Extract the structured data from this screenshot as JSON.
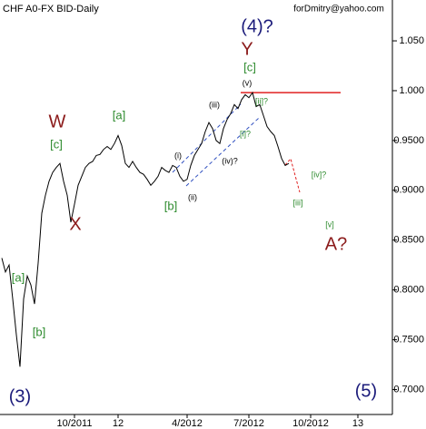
{
  "chart_data": {
    "type": "line",
    "title": "CHF A0-FX BID-Daily",
    "subtitle": "forDmitry@yahoo.com",
    "categories": [
      null,
      null,
      null,
      null,
      null,
      null,
      null,
      null,
      null,
      null,
      null,
      null,
      null,
      null,
      null,
      null,
      null,
      null,
      null,
      null,
      "10/2011",
      null,
      null,
      null,
      null,
      null,
      null,
      null,
      null,
      null,
      null,
      null,
      "12",
      null,
      null,
      null,
      null,
      null,
      null,
      null,
      null,
      null,
      null,
      null,
      null,
      null,
      null,
      null,
      null,
      null,
      null,
      "4/2012",
      null,
      null,
      null,
      null,
      null,
      null,
      null,
      null,
      null,
      null,
      null,
      null,
      null,
      null,
      null,
      null,
      "7/2012",
      null,
      null,
      null,
      null,
      null,
      null,
      null,
      null,
      null,
      null,
      null,
      null,
      null,
      null,
      null,
      null,
      "10/2012",
      null,
      null,
      null,
      null,
      null,
      null,
      null,
      null,
      null,
      null,
      null,
      null,
      "13",
      null,
      null,
      null,
      null,
      null,
      null,
      null,
      null,
      null
    ],
    "series": [
      {
        "color": "#000000",
        "values": [
          0.832,
          0.818,
          0.825,
          0.791,
          0.755,
          0.723,
          0.791,
          0.814,
          0.805,
          0.786,
          0.827,
          0.877,
          0.895,
          0.909,
          0.918,
          0.923,
          0.927,
          0.909,
          0.895,
          0.868,
          0.886,
          0.905,
          0.914,
          0.923,
          0.927,
          0.929,
          0.935,
          0.936,
          0.941,
          0.944,
          0.941,
          0.947,
          0.955,
          0.945,
          0.927,
          0.923,
          0.929,
          0.923,
          0.918,
          0.916,
          0.911,
          0.905,
          0.909,
          0.914,
          0.923,
          0.92,
          0.918,
          0.925,
          0.923,
          0.914,
          0.909,
          0.911,
          0.925,
          0.935,
          0.941,
          0.947,
          0.959,
          0.968,
          0.962,
          0.95,
          0.947,
          0.962,
          0.971,
          0.977,
          0.986,
          0.982,
          0.991,
          0.996,
          0.993,
          0.998,
          0.984,
          0.986,
          0.975,
          0.964,
          0.959,
          0.955,
          0.944,
          0.932,
          0.925,
          0.927,
          null,
          null,
          null,
          null,
          null,
          null,
          null,
          null,
          null,
          null,
          null,
          null,
          null,
          null,
          null,
          null,
          null,
          null,
          null,
          null,
          null,
          null,
          null,
          null,
          null,
          null,
          null,
          null
        ]
      }
    ],
    "ylim": [
      0.675,
      1.091
    ],
    "yticks": [
      {
        "value": 1.05,
        "label": "1.050"
      },
      {
        "value": 1.0,
        "label": "1.000"
      },
      {
        "value": 0.95,
        "label": "0.9500"
      },
      {
        "value": 0.9,
        "label": "0.9000"
      },
      {
        "value": 0.85,
        "label": "0.8500"
      },
      {
        "value": 0.8,
        "label": "0.8000"
      },
      {
        "value": 0.75,
        "label": "0.7500"
      },
      {
        "value": 0.7,
        "label": "0.7000"
      }
    ],
    "hline": {
      "value": 0.998,
      "color": "#e02020"
    },
    "annotations": [
      {
        "text": "(4)?",
        "color": "#1a1a7a"
      },
      {
        "text": "Y",
        "color": "#8b1a1a"
      },
      {
        "text": "[c]",
        "color": "#2e8b2e"
      },
      {
        "text": "(v)",
        "color": "#000000"
      },
      {
        "text": "[ii]?",
        "color": "#2e8b2e"
      },
      {
        "text": "(iii)",
        "color": "#000000"
      },
      {
        "text": "[i]?",
        "color": "#2e8b2e"
      },
      {
        "text": "(i)",
        "color": "#000000"
      },
      {
        "text": "(iv)?",
        "color": "#000000"
      },
      {
        "text": "(ii)",
        "color": "#000000"
      },
      {
        "text": "[b]",
        "color": "#2e8b2e"
      },
      {
        "text": "[a]",
        "color": "#2e8b2e"
      },
      {
        "text": "W",
        "color": "#8b1a1a"
      },
      {
        "text": "[c]",
        "color": "#2e8b2e"
      },
      {
        "text": "X",
        "color": "#8b1a1a"
      },
      {
        "text": "[a]",
        "color": "#2e8b2e"
      },
      {
        "text": "[b]",
        "color": "#2e8b2e"
      },
      {
        "text": "(3)",
        "color": "#1a1a7a"
      },
      {
        "text": "[iv]?",
        "color": "#2e8b2e"
      },
      {
        "text": "[iii]",
        "color": "#2e8b2e"
      },
      {
        "text": "[v]",
        "color": "#2e8b2e"
      },
      {
        "text": "A?",
        "color": "#8b1a1a"
      },
      {
        "text": "(5)",
        "color": "#1a1a7a"
      }
    ]
  }
}
